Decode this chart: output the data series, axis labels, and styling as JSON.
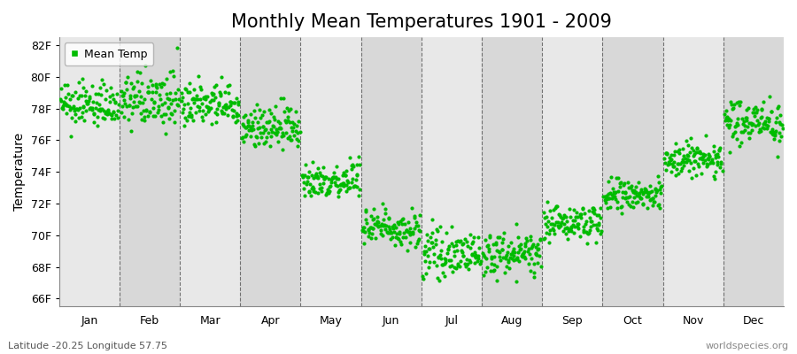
{
  "title": "Monthly Mean Temperatures 1901 - 2009",
  "ylabel": "Temperature",
  "xlabel_labels": [
    "Jan",
    "Feb",
    "Mar",
    "Apr",
    "May",
    "Jun",
    "Jul",
    "Aug",
    "Sep",
    "Oct",
    "Nov",
    "Dec"
  ],
  "ytick_labels": [
    "66F",
    "68F",
    "70F",
    "72F",
    "74F",
    "76F",
    "78F",
    "80F",
    "82F"
  ],
  "ytick_values": [
    66,
    68,
    70,
    72,
    74,
    76,
    78,
    80,
    82
  ],
  "ylim": [
    65.5,
    82.5
  ],
  "dot_color": "#00bb00",
  "bg_color": "#ffffff",
  "plot_bg_color": "#e8e8e8",
  "band_color_light": "#e8e8e8",
  "band_color_dark": "#d8d8d8",
  "legend_label": "Mean Temp",
  "footer_left": "Latitude -20.25 Longitude 57.75",
  "footer_right": "worldspecies.org",
  "title_fontsize": 15,
  "axis_fontsize": 10,
  "tick_fontsize": 9,
  "marker_size": 3,
  "n_years": 109,
  "monthly_means": [
    78.2,
    78.5,
    78.2,
    76.8,
    73.5,
    70.5,
    68.8,
    68.8,
    70.8,
    72.5,
    74.8,
    77.2
  ],
  "monthly_stds": [
    0.65,
    0.85,
    0.7,
    0.7,
    0.6,
    0.6,
    0.65,
    0.65,
    0.55,
    0.55,
    0.6,
    0.7
  ]
}
